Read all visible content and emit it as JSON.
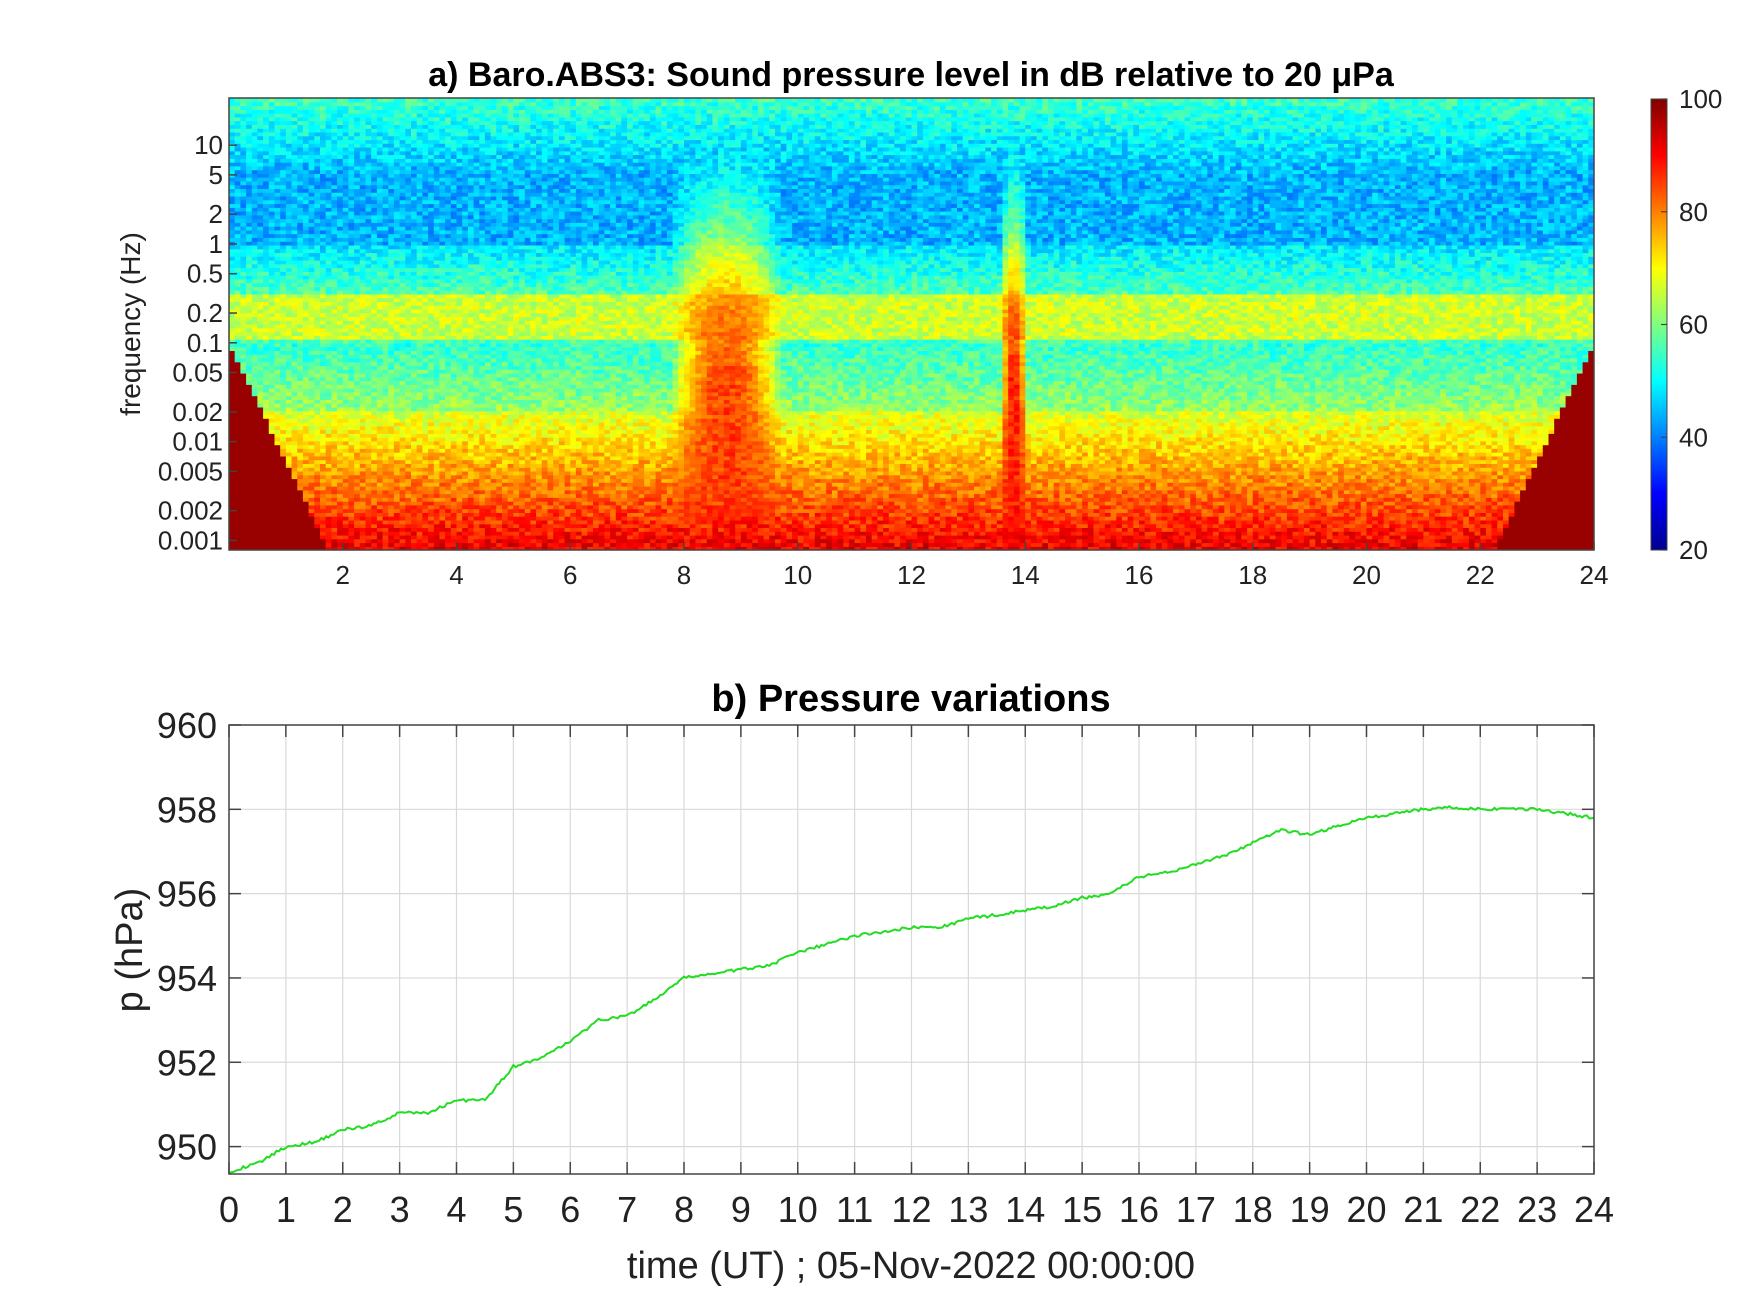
{
  "chart_data": [
    {
      "type": "heatmap",
      "title": "a) Baro.ABS3: Sound pressure level in dB relative to 20 μPa",
      "xlabel": "",
      "ylabel": "frequency (Hz)",
      "y_scale": "log",
      "xlim": [
        0,
        24
      ],
      "ylim": [
        0.0008,
        30
      ],
      "x_ticks": [
        2,
        4,
        6,
        8,
        10,
        12,
        14,
        16,
        18,
        20,
        22,
        24
      ],
      "y_ticks": [
        0.001,
        0.002,
        0.005,
        0.01,
        0.02,
        0.05,
        0.1,
        0.2,
        0.5,
        1,
        2,
        5,
        10
      ],
      "y_tick_labels": [
        "0.001",
        "0.002",
        "0.005",
        "0.01",
        "0.02",
        "0.05",
        "0.1",
        "0.2",
        "0.5",
        "1",
        "2",
        "5",
        "10"
      ],
      "colorbar": {
        "colormap": "jet",
        "min": 20,
        "max": 100,
        "ticks": [
          20,
          40,
          60,
          80,
          100
        ]
      },
      "events": [
        {
          "name": "broadband burst",
          "x_start": 7.8,
          "x_end": 9.7,
          "level_db": 85
        },
        {
          "name": "narrow burst",
          "x_start": 13.6,
          "x_end": 14.0,
          "level_db": 88
        }
      ],
      "approx_band_levels_db": {
        "0.001-0.003 Hz": 90,
        "0.003-0.02 Hz": 72,
        "0.02-0.1 Hz": 55,
        "0.1-0.3 Hz": 64,
        "0.3-1 Hz": 52,
        "1-5 Hz": 42,
        "5-30 Hz": 50
      }
    },
    {
      "type": "line",
      "title": "b) Pressure variations",
      "xlabel": "time (UT) ; 05-Nov-2022 00:00:00",
      "ylabel": "p (hPa)",
      "xlim": [
        0,
        24
      ],
      "ylim": [
        949.35,
        960
      ],
      "x_ticks": [
        0,
        1,
        2,
        3,
        4,
        5,
        6,
        7,
        8,
        9,
        10,
        11,
        12,
        13,
        14,
        15,
        16,
        17,
        18,
        19,
        20,
        21,
        22,
        23,
        24
      ],
      "y_ticks": [
        950,
        952,
        954,
        956,
        958,
        960
      ],
      "grid": true,
      "series": [
        {
          "color": "#22dd22",
          "x": [
            0,
            0.5,
            1,
            1.5,
            2,
            2.5,
            3,
            3.5,
            4,
            4.5,
            5,
            5.5,
            6,
            6.5,
            7,
            7.5,
            8,
            8.5,
            9,
            9.5,
            10,
            10.5,
            11,
            11.5,
            12,
            12.5,
            13,
            13.5,
            14,
            14.5,
            15,
            15.5,
            16,
            16.5,
            17,
            17.5,
            18,
            18.5,
            19,
            19.5,
            20,
            20.5,
            21,
            21.5,
            22,
            22.5,
            23,
            23.5,
            24
          ],
          "y": [
            949.4,
            949.6,
            950.0,
            950.1,
            950.4,
            950.5,
            950.8,
            950.8,
            951.1,
            951.1,
            951.9,
            952.1,
            952.5,
            953.0,
            953.1,
            953.5,
            954.0,
            954.1,
            954.2,
            954.3,
            954.6,
            954.8,
            955.0,
            955.1,
            955.2,
            955.2,
            955.4,
            955.5,
            955.6,
            955.7,
            955.9,
            956.0,
            956.4,
            956.5,
            956.7,
            956.9,
            957.2,
            957.5,
            957.4,
            957.6,
            957.8,
            957.9,
            958.0,
            958.05,
            958.0,
            958.0,
            958.0,
            957.9,
            957.8
          ]
        }
      ]
    }
  ]
}
